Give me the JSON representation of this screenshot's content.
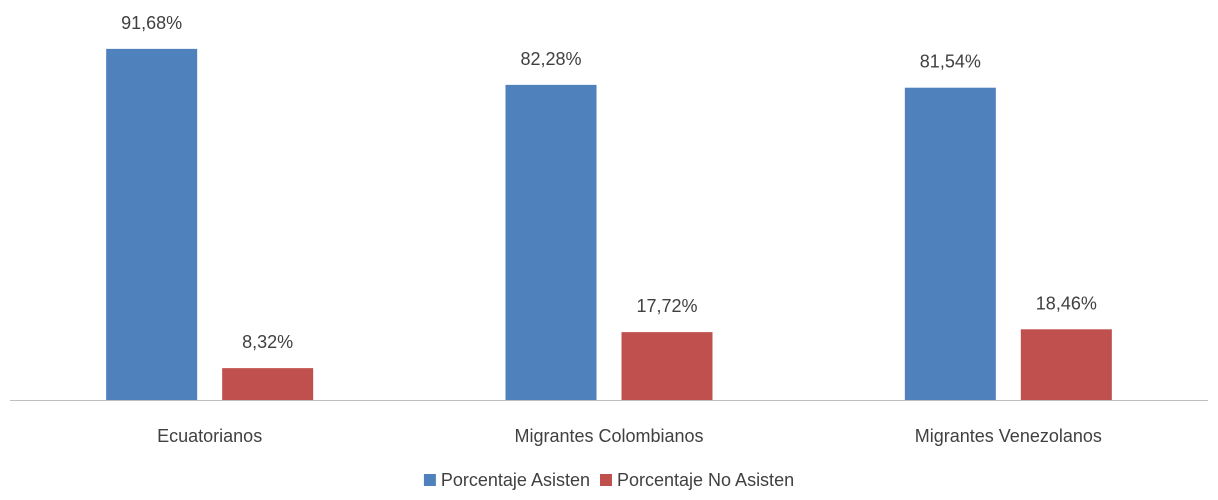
{
  "chart_data": {
    "type": "bar",
    "categories": [
      "Ecuatorianos",
      "Migrantes Colombianos",
      "Migrantes Venezolanos"
    ],
    "series": [
      {
        "name": "Porcentaje Asisten",
        "values": [
          91.68,
          82.28,
          81.54
        ],
        "labels": [
          "91,68%",
          "82,28%",
          "81,54%"
        ],
        "color": "#4F81BD"
      },
      {
        "name": "Porcentaje No Asisten",
        "values": [
          8.32,
          17.72,
          18.46
        ],
        "labels": [
          "8,32%",
          "17,72%",
          "18,46%"
        ],
        "color": "#C0504D"
      }
    ],
    "ylim": [
      0,
      100
    ],
    "grid": false,
    "legend_position": "bottom",
    "axis_color": "#BFBFBF"
  }
}
